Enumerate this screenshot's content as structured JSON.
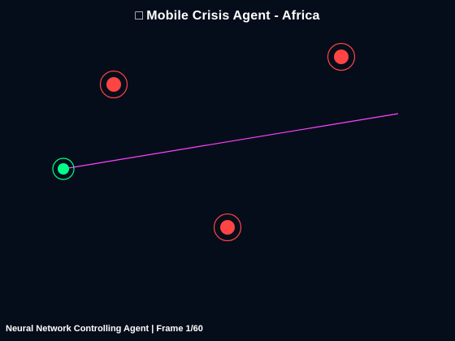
{
  "title": {
    "icon": "□",
    "text": "Mobile Crisis Agent - Africa"
  },
  "footer": {
    "label": "Neural Network Controlling Agent",
    "frame_label": "Frame 1/60"
  },
  "colors": {
    "background": "#060d1a",
    "agent": "#00ff88",
    "crisis": "#ff4444",
    "path": "#ff44ff",
    "text": "#ffffff"
  },
  "entities": {
    "agent": {
      "name": "agent"
    },
    "crisis_points": [
      {
        "name": "crisis-point-1"
      },
      {
        "name": "crisis-point-2"
      },
      {
        "name": "crisis-point-3"
      }
    ]
  }
}
